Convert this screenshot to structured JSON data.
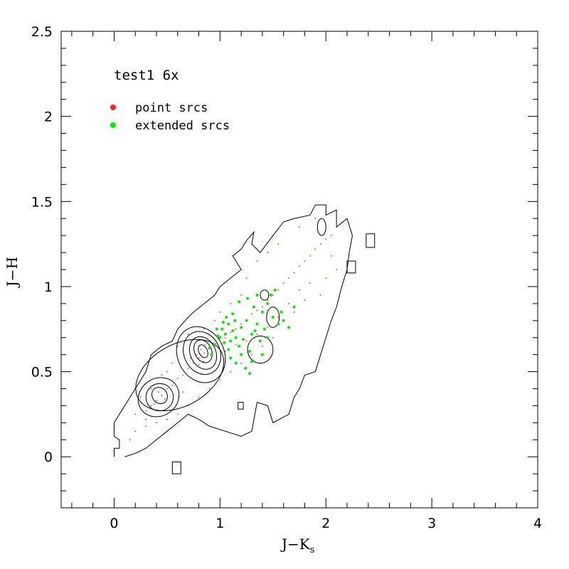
{
  "chart_data": {
    "type": "scatter",
    "title": "test1 6x",
    "xlabel": "J−K",
    "xlabel_sub": "s",
    "ylabel": "J−H",
    "xlim": [
      -0.5,
      4.0
    ],
    "ylim": [
      -0.3,
      2.5
    ],
    "xticks": [
      0,
      1,
      2,
      3,
      4
    ],
    "xtick_labels": [
      "0",
      "1",
      "2",
      "3",
      "4"
    ],
    "yticks": [
      0,
      0.5,
      1,
      1.5,
      2,
      2.5
    ],
    "ytick_labels": [
      "0",
      "0.5",
      "1",
      "1.5",
      "2",
      "2.5"
    ],
    "grid": false,
    "legend": {
      "placement": "top-left",
      "entries": [
        "point srcs",
        "extended srcs"
      ]
    },
    "colors": {
      "point": "#ff2020",
      "extended": "#00ee00",
      "contour": "#000000"
    },
    "series": [
      {
        "name": "point srcs",
        "color": "#ff2020",
        "points": [
          [
            0.45,
            0.36
          ],
          [
            0.4,
            0.33
          ],
          [
            0.5,
            0.4
          ],
          [
            0.35,
            0.3
          ],
          [
            0.55,
            0.42
          ],
          [
            0.3,
            0.27
          ],
          [
            0.6,
            0.46
          ],
          [
            0.42,
            0.38
          ],
          [
            0.48,
            0.34
          ],
          [
            0.38,
            0.31
          ],
          [
            0.65,
            0.48
          ],
          [
            0.7,
            0.52
          ],
          [
            0.75,
            0.55
          ],
          [
            0.8,
            0.58
          ],
          [
            0.85,
            0.61
          ],
          [
            0.82,
            0.63
          ],
          [
            0.78,
            0.6
          ],
          [
            0.88,
            0.59
          ],
          [
            0.9,
            0.64
          ],
          [
            0.84,
            0.56
          ],
          [
            0.76,
            0.62
          ],
          [
            0.86,
            0.66
          ],
          [
            0.92,
            0.6
          ],
          [
            0.8,
            0.54
          ],
          [
            0.72,
            0.58
          ],
          [
            0.95,
            0.65
          ],
          [
            1.0,
            0.68
          ],
          [
            1.05,
            0.7
          ],
          [
            1.1,
            0.73
          ],
          [
            1.15,
            0.75
          ],
          [
            1.2,
            0.78
          ],
          [
            1.25,
            0.8
          ],
          [
            1.3,
            0.84
          ],
          [
            1.35,
            0.86
          ],
          [
            1.4,
            0.88
          ],
          [
            1.45,
            0.92
          ],
          [
            1.5,
            0.95
          ],
          [
            1.55,
            0.98
          ],
          [
            1.6,
            1.02
          ],
          [
            1.65,
            1.05
          ],
          [
            1.7,
            1.08
          ],
          [
            1.75,
            1.12
          ],
          [
            1.8,
            1.15
          ],
          [
            1.85,
            1.18
          ],
          [
            1.9,
            1.22
          ],
          [
            1.95,
            1.25
          ],
          [
            2.0,
            1.28
          ],
          [
            1.6,
            0.8
          ],
          [
            1.7,
            0.85
          ],
          [
            1.8,
            0.92
          ],
          [
            1.5,
            0.7
          ],
          [
            1.4,
            0.65
          ],
          [
            1.3,
            0.6
          ],
          [
            1.2,
            0.55
          ],
          [
            1.1,
            0.5
          ],
          [
            1.0,
            0.45
          ],
          [
            0.9,
            0.4
          ],
          [
            0.8,
            0.35
          ],
          [
            0.7,
            0.3
          ],
          [
            0.6,
            0.25
          ],
          [
            0.5,
            0.22
          ],
          [
            0.4,
            0.2
          ],
          [
            0.3,
            0.18
          ],
          [
            0.2,
            0.15
          ],
          [
            0.15,
            0.1
          ],
          [
            1.25,
            1.05
          ],
          [
            1.35,
            1.15
          ],
          [
            1.45,
            1.2
          ],
          [
            1.55,
            1.25
          ],
          [
            1.75,
            1.35
          ],
          [
            1.9,
            1.4
          ],
          [
            2.05,
            1.3
          ],
          [
            2.1,
            1.1
          ],
          [
            1.95,
            0.95
          ],
          [
            2.0,
            1.05
          ],
          [
            1.2,
            0.95
          ],
          [
            1.1,
            0.9
          ],
          [
            1.0,
            0.85
          ],
          [
            0.95,
            0.8
          ],
          [
            0.85,
            0.75
          ],
          [
            0.7,
            0.72
          ],
          [
            0.6,
            0.65
          ],
          [
            0.55,
            0.55
          ],
          [
            0.5,
            0.5
          ],
          [
            0.45,
            0.48
          ],
          [
            0.35,
            0.4
          ],
          [
            0.25,
            0.35
          ],
          [
            0.2,
            0.25
          ],
          [
            0.3,
            0.22
          ],
          [
            0.65,
            0.38
          ],
          [
            1.05,
            0.62
          ],
          [
            1.15,
            0.66
          ],
          [
            1.25,
            0.68
          ],
          [
            1.35,
            0.72
          ],
          [
            1.45,
            0.76
          ],
          [
            1.55,
            0.82
          ],
          [
            1.65,
            0.9
          ],
          [
            1.75,
            0.98
          ],
          [
            1.85,
            1.02
          ],
          [
            2.05,
            1.18
          ]
        ]
      },
      {
        "name": "extended srcs",
        "color": "#00ee00",
        "points": [
          [
            1.0,
            0.7
          ],
          [
            1.05,
            0.72
          ],
          [
            1.1,
            0.68
          ],
          [
            0.95,
            0.66
          ],
          [
            1.02,
            0.75
          ],
          [
            1.08,
            0.78
          ],
          [
            1.12,
            0.74
          ],
          [
            0.98,
            0.71
          ],
          [
            1.04,
            0.67
          ],
          [
            1.15,
            0.7
          ],
          [
            1.2,
            0.76
          ],
          [
            1.25,
            0.8
          ],
          [
            1.3,
            0.72
          ],
          [
            1.35,
            0.78
          ],
          [
            1.18,
            0.65
          ],
          [
            1.22,
            0.69
          ],
          [
            1.28,
            0.62
          ],
          [
            1.4,
            0.85
          ],
          [
            1.45,
            0.9
          ],
          [
            1.5,
            0.82
          ],
          [
            1.55,
            0.78
          ],
          [
            1.6,
            0.8
          ],
          [
            1.48,
            0.95
          ],
          [
            1.42,
            0.75
          ],
          [
            1.38,
            0.68
          ],
          [
            1.32,
            0.88
          ],
          [
            1.26,
            0.93
          ],
          [
            1.2,
            0.6
          ],
          [
            1.24,
            0.52
          ],
          [
            1.28,
            0.49
          ],
          [
            1.15,
            0.55
          ],
          [
            1.1,
            0.58
          ],
          [
            0.92,
            0.6
          ],
          [
            0.9,
            0.64
          ],
          [
            1.06,
            0.82
          ],
          [
            1.12,
            0.84
          ],
          [
            1.35,
            0.95
          ],
          [
            1.52,
            0.98
          ],
          [
            1.58,
            0.85
          ],
          [
            1.7,
            0.88
          ],
          [
            1.65,
            0.76
          ],
          [
            1.45,
            0.7
          ],
          [
            1.3,
            0.56
          ],
          [
            1.18,
            0.91
          ],
          [
            1.03,
            0.79
          ],
          [
            0.97,
            0.75
          ],
          [
            1.08,
            0.63
          ],
          [
            1.14,
            0.8
          ],
          [
            1.33,
            0.74
          ],
          [
            1.4,
            0.6
          ]
        ]
      }
    ]
  }
}
